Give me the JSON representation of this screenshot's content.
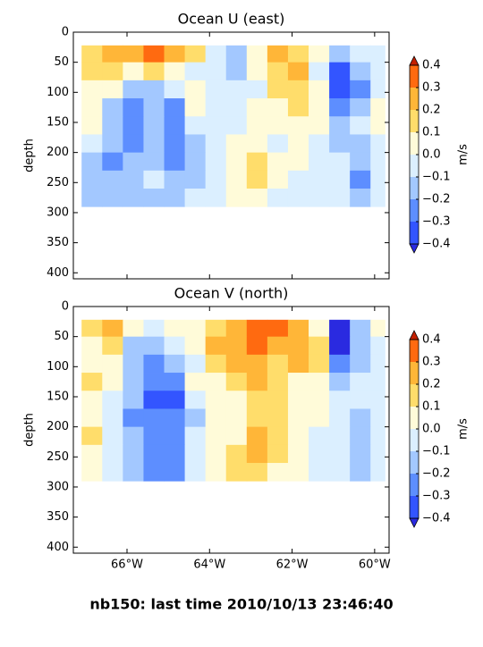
{
  "figure_title": "nb150: last time 2010/10/13 23:46:40",
  "chart_data": [
    {
      "type": "contourf",
      "title": "Ocean U (east)",
      "ylabel": "depth",
      "colorbar_label": "m/s",
      "xlim": [
        -67.3,
        -59.65
      ],
      "ylim": [
        410,
        0
      ],
      "yticks": [
        0,
        50,
        100,
        150,
        200,
        250,
        300,
        350,
        400
      ],
      "x_edges": [
        -67.1,
        -66.6,
        -66.1,
        -65.6,
        -65.1,
        -64.6,
        -64.1,
        -63.6,
        -63.1,
        -62.6,
        -62.1,
        -61.6,
        -61.1,
        -60.6,
        -60.1,
        -59.75
      ],
      "y_edges": [
        22,
        50,
        80,
        110,
        140,
        170,
        200,
        230,
        260,
        290
      ],
      "values": [
        [
          0.15,
          0.25,
          0.25,
          0.35,
          0.2,
          0.1,
          -0.05,
          -0.15,
          0.05,
          0.2,
          0.15,
          0.05,
          -0.15,
          -0.1,
          -0.05
        ],
        [
          0.1,
          0.15,
          0.05,
          0.15,
          0.05,
          -0.05,
          -0.1,
          -0.15,
          0.05,
          0.15,
          0.25,
          -0.05,
          -0.35,
          -0.15,
          -0.05
        ],
        [
          0.05,
          0.05,
          -0.15,
          -0.15,
          -0.05,
          0.05,
          -0.05,
          -0.05,
          -0.05,
          0.15,
          0.15,
          0.05,
          -0.35,
          -0.25,
          -0.05
        ],
        [
          0.05,
          -0.15,
          -0.25,
          -0.15,
          -0.25,
          0.05,
          -0.05,
          -0.05,
          0.05,
          0.05,
          0.15,
          0.05,
          -0.25,
          -0.15,
          0.05
        ],
        [
          0.05,
          -0.15,
          -0.25,
          -0.15,
          -0.25,
          -0.05,
          -0.05,
          -0.05,
          0.05,
          0.05,
          0.05,
          0.05,
          -0.15,
          -0.05,
          0.05
        ],
        [
          -0.05,
          -0.15,
          -0.25,
          -0.15,
          -0.25,
          -0.15,
          -0.05,
          0.05,
          0.05,
          -0.05,
          0.05,
          -0.05,
          -0.15,
          -0.15,
          -0.05
        ],
        [
          -0.15,
          -0.25,
          -0.15,
          -0.15,
          -0.25,
          -0.15,
          -0.05,
          0.05,
          0.15,
          0.05,
          0.05,
          -0.05,
          -0.05,
          -0.15,
          -0.05
        ],
        [
          -0.15,
          -0.15,
          -0.15,
          -0.05,
          -0.15,
          -0.15,
          -0.05,
          0.05,
          0.15,
          0.05,
          -0.05,
          -0.05,
          -0.05,
          -0.25,
          -0.05
        ],
        [
          -0.15,
          -0.15,
          -0.15,
          -0.15,
          -0.15,
          -0.05,
          -0.05,
          0.05,
          0.05,
          -0.05,
          -0.05,
          -0.05,
          -0.05,
          -0.15,
          -0.05
        ]
      ],
      "levels": [
        -0.4,
        -0.3,
        -0.2,
        -0.1,
        0,
        0.1,
        0.2,
        0.3,
        0.4
      ],
      "colors": [
        "#2a2ae0",
        "#3355ff",
        "#5d8eff",
        "#a3c8ff",
        "#dbefff",
        "#fffbd9",
        "#ffdd6b",
        "#ffb638",
        "#ff6a10",
        "#c42000"
      ],
      "colorbar_ticks": [
        {
          "value": -0.4,
          "label": "−0.4"
        },
        {
          "value": -0.3,
          "label": "−0.3"
        },
        {
          "value": -0.2,
          "label": "−0.2"
        },
        {
          "value": -0.1,
          "label": "−0.1"
        },
        {
          "value": 0,
          "label": "0.0"
        },
        0.1,
        0.2,
        0.3,
        0.4
      ]
    },
    {
      "type": "contourf",
      "title": "Ocean V (north)",
      "ylabel": "depth",
      "colorbar_label": "m/s",
      "xlim": [
        -67.3,
        -59.65
      ],
      "ylim": [
        410,
        0
      ],
      "yticks": [
        0,
        50,
        100,
        150,
        200,
        250,
        300,
        350,
        400
      ],
      "xticks": [
        {
          "value": -66,
          "label": "66°W"
        },
        {
          "value": -64,
          "label": "64°W"
        },
        {
          "value": -62,
          "label": "62°W"
        },
        {
          "value": -60,
          "label": "60°W"
        }
      ],
      "x_edges": [
        -67.1,
        -66.6,
        -66.1,
        -65.6,
        -65.1,
        -64.6,
        -64.1,
        -63.6,
        -63.1,
        -62.6,
        -62.1,
        -61.6,
        -61.1,
        -60.6,
        -60.1,
        -59.75
      ],
      "y_edges": [
        22,
        50,
        80,
        110,
        140,
        170,
        200,
        230,
        260,
        290
      ],
      "values": [
        [
          0.15,
          0.25,
          0.05,
          -0.05,
          0.05,
          0.05,
          0.15,
          0.25,
          0.35,
          0.3,
          0.25,
          0.05,
          -0.45,
          -0.15,
          0.05
        ],
        [
          0.05,
          0.15,
          -0.15,
          -0.15,
          -0.05,
          0.05,
          0.25,
          0.25,
          0.35,
          0.25,
          0.2,
          0.15,
          -0.45,
          -0.15,
          -0.05
        ],
        [
          0.05,
          0.05,
          -0.15,
          -0.25,
          -0.15,
          -0.05,
          0.15,
          0.25,
          0.25,
          0.15,
          0.2,
          0.15,
          -0.25,
          -0.15,
          -0.05
        ],
        [
          0.15,
          0.05,
          -0.15,
          -0.25,
          -0.25,
          0.05,
          0.05,
          0.15,
          0.25,
          0.15,
          0.05,
          0.05,
          -0.15,
          -0.05,
          -0.05
        ],
        [
          0.05,
          -0.05,
          -0.15,
          -0.35,
          -0.35,
          -0.05,
          0.05,
          0.05,
          0.15,
          0.15,
          0.05,
          0.05,
          -0.05,
          -0.05,
          -0.05
        ],
        [
          0.05,
          -0.05,
          -0.25,
          -0.25,
          -0.25,
          -0.15,
          0.05,
          0.05,
          0.15,
          0.15,
          0.05,
          0.05,
          -0.05,
          -0.15,
          -0.05
        ],
        [
          0.15,
          -0.05,
          -0.15,
          -0.25,
          -0.25,
          -0.05,
          0.05,
          0.05,
          0.25,
          0.15,
          0.05,
          -0.05,
          -0.05,
          -0.15,
          -0.05
        ],
        [
          0.05,
          -0.05,
          -0.15,
          -0.25,
          -0.25,
          -0.05,
          0.05,
          0.15,
          0.25,
          0.15,
          0.05,
          -0.05,
          -0.05,
          -0.15,
          -0.05
        ],
        [
          0.05,
          -0.05,
          -0.15,
          -0.25,
          -0.25,
          -0.05,
          0.05,
          0.15,
          0.15,
          0.05,
          0.05,
          -0.05,
          -0.05,
          -0.15,
          -0.05
        ]
      ],
      "levels": [
        -0.4,
        -0.3,
        -0.2,
        -0.1,
        0,
        0.1,
        0.2,
        0.3,
        0.4
      ],
      "colors": [
        "#2a2ae0",
        "#3355ff",
        "#5d8eff",
        "#a3c8ff",
        "#dbefff",
        "#fffbd9",
        "#ffdd6b",
        "#ffb638",
        "#ff6a10",
        "#c42000"
      ],
      "colorbar_ticks": [
        {
          "value": -0.4,
          "label": "−0.4"
        },
        {
          "value": -0.3,
          "label": "−0.3"
        },
        {
          "value": -0.2,
          "label": "−0.2"
        },
        {
          "value": -0.1,
          "label": "−0.1"
        },
        {
          "value": 0,
          "label": "0.0"
        },
        0.1,
        0.2,
        0.3,
        0.4
      ]
    }
  ]
}
